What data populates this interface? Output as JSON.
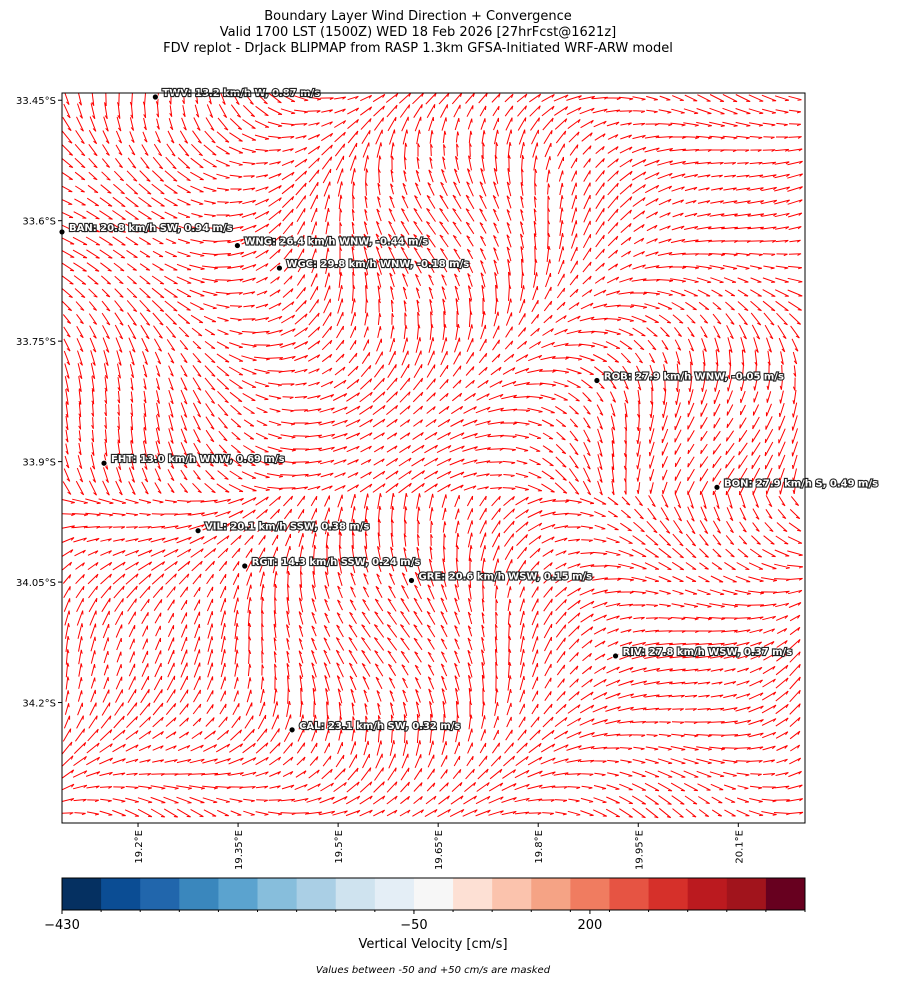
{
  "header": {
    "title": [
      "Boundary Layer Wind Direction + Convergence",
      "Valid 1700 LST (1500Z) WED 18 Feb 2026 [27hrFcst@1621z]",
      "FDV replot - DrJack BLIPMAP from RASP 1.3km GFSA-Initiated WRF-ARW model"
    ]
  },
  "map": {
    "xlim": [
      19.086,
      20.2
    ],
    "ylim": [
      33.441,
      34.35
    ],
    "xticks": [
      {
        "value": 19.2,
        "label": "19.2°E"
      },
      {
        "value": 19.35,
        "label": "19.35°E"
      },
      {
        "value": 19.5,
        "label": "19.5°E"
      },
      {
        "value": 19.65,
        "label": "19.65°E"
      },
      {
        "value": 19.8,
        "label": "19.8°E"
      },
      {
        "value": 19.95,
        "label": "19.95°E"
      },
      {
        "value": 20.1,
        "label": "20.1°E"
      }
    ],
    "yticks": [
      {
        "value": 33.45,
        "label": "33.45°S"
      },
      {
        "value": 33.6,
        "label": "33.6°S"
      },
      {
        "value": 33.75,
        "label": "33.75°S"
      },
      {
        "value": 33.9,
        "label": "33.9°S"
      },
      {
        "value": 34.05,
        "label": "34.05°S"
      },
      {
        "value": 34.2,
        "label": "34.2°S"
      }
    ],
    "wind_color": "#ff0000",
    "stations": [
      {
        "label": "TWV: 13.2 km/h W, 0.87 m/s",
        "lon": 19.226,
        "lat": 33.446
      },
      {
        "label": "BAN: 20.8 km/h SW, 0.94 m/s",
        "lon": 19.086,
        "lat": 33.614
      },
      {
        "label": "WNG: 26.4 km/h WNW, -0.44 m/s",
        "lon": 19.349,
        "lat": 33.631
      },
      {
        "label": "WGC: 29.8 km/h WNW, -0.18 m/s",
        "lon": 19.412,
        "lat": 33.659
      },
      {
        "label": "ROB: 27.9 km/h WNW, -0.05 m/s",
        "lon": 19.888,
        "lat": 33.799
      },
      {
        "label": "FHT: 13.0 km/h WNW, 0.69 m/s",
        "lon": 19.149,
        "lat": 33.902
      },
      {
        "label": "BON: 27.9 km/h S, 0.49 m/s",
        "lon": 20.068,
        "lat": 33.932
      },
      {
        "label": "VIL: 20.1 km/h SSW, 0.38 m/s",
        "lon": 19.29,
        "lat": 33.986
      },
      {
        "label": "RGT: 14.3 km/h SSW, 0.24 m/s",
        "lon": 19.36,
        "lat": 34.03
      },
      {
        "label": "GRE: 20.6 km/h WSW, 0.15 m/s",
        "lon": 19.61,
        "lat": 34.048
      },
      {
        "label": "RIV: 27.8 km/h WSW, 0.37 m/s",
        "lon": 19.916,
        "lat": 34.142
      },
      {
        "label": "CAL: 23.1 km/h SW, 0.32 m/s",
        "lon": 19.431,
        "lat": 34.234
      }
    ]
  },
  "colorbar": {
    "label": "Vertical Velocity [cm/s]",
    "levels": [
      -430,
      -380,
      -330,
      -280,
      -230,
      -180,
      -130,
      -90,
      -70,
      -50,
      50,
      80,
      120,
      160,
      240,
      290,
      340,
      390,
      420,
      450
    ],
    "colors": [
      "#053061",
      "#0b4d94",
      "#2166ac",
      "#3a87bd",
      "#5ba3cf",
      "#87bedc",
      "#aacfe5",
      "#cfe3ef",
      "#e4eef6",
      "#f7f7f7",
      "#fde0d4",
      "#fbc3ad",
      "#f5a385",
      "#f07c60",
      "#e65443",
      "#d6302a",
      "#bb1a1f",
      "#a1141c",
      "#67001f"
    ],
    "ticks": [
      {
        "value": -430,
        "label": "−430"
      },
      {
        "value": -50,
        "label": "−50"
      },
      {
        "value": 200,
        "label": "200"
      }
    ]
  },
  "footnote": "Values between -50 and +50 cm/s are masked"
}
